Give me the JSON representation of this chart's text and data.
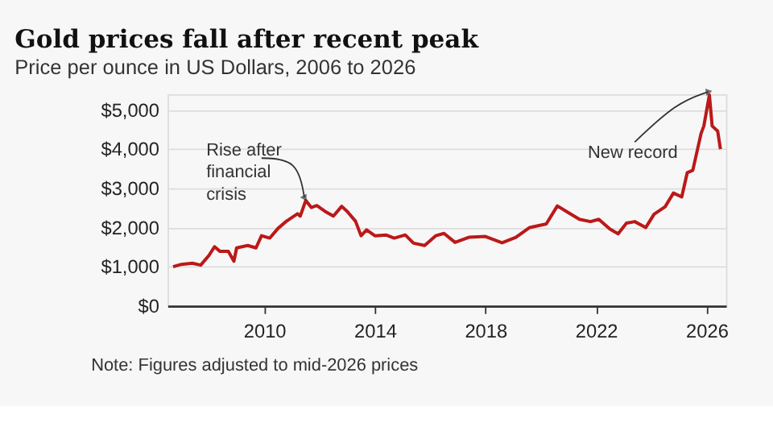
{
  "chart_data": {
    "type": "line",
    "title": "Gold prices fall after recent peak",
    "subtitle": "Price per ounce in US Dollars, 2006 to 2026",
    "x": [
      2006.7,
      2007.0,
      2007.4,
      2007.7,
      2008.0,
      2008.2,
      2008.4,
      2008.7,
      2008.9,
      2009.0,
      2009.4,
      2009.7,
      2009.9,
      2010.2,
      2010.5,
      2010.8,
      2011.2,
      2011.3,
      2011.5,
      2011.7,
      2011.9,
      2012.2,
      2012.5,
      2012.8,
      2013.0,
      2013.3,
      2013.5,
      2013.7,
      2014.0,
      2014.4,
      2014.7,
      2015.1,
      2015.4,
      2015.8,
      2016.2,
      2016.5,
      2016.9,
      2017.4,
      2018.0,
      2018.6,
      2019.1,
      2019.6,
      2020.2,
      2020.6,
      2021.0,
      2021.4,
      2021.8,
      2022.1,
      2022.5,
      2022.8,
      2023.1,
      2023.4,
      2023.8,
      2024.1,
      2024.5,
      2024.8,
      2025.1,
      2025.3,
      2025.5,
      2025.8,
      2025.9,
      2026.1,
      2026.2,
      2026.4,
      2026.5
    ],
    "series": [
      {
        "color": "#bb1919",
        "values": [
          1000,
          1060,
          1090,
          1040,
          1290,
          1510,
          1390,
          1390,
          1140,
          1480,
          1540,
          1480,
          1790,
          1730,
          1980,
          2160,
          2350,
          2290,
          2690,
          2510,
          2560,
          2410,
          2290,
          2540,
          2410,
          2160,
          1790,
          1940,
          1790,
          1810,
          1730,
          1810,
          1600,
          1540,
          1790,
          1850,
          1620,
          1750,
          1770,
          1610,
          1750,
          2000,
          2090,
          2550,
          2380,
          2210,
          2150,
          2210,
          1960,
          1840,
          2110,
          2150,
          2000,
          2340,
          2530,
          2880,
          2780,
          3400,
          3460,
          4400,
          4590,
          5380,
          4590,
          4460,
          4000
        ]
      }
    ],
    "xlim": [
      2006.5,
      2026.7
    ],
    "xticks": [
      2010,
      2014,
      2018,
      2022,
      2026
    ],
    "ylim": [
      0,
      5400
    ],
    "yticks": [
      {
        "value": 0,
        "label": "$0"
      },
      {
        "value": 1000,
        "label": "$1,000"
      },
      {
        "value": 2000,
        "label": "$2,000"
      },
      {
        "value": 3000,
        "label": "$3,000"
      },
      {
        "value": 4000,
        "label": "$4,000"
      },
      {
        "value": 5000,
        "label": "$5,000"
      }
    ],
    "grid": "y",
    "marker": "none",
    "line_style": "solid",
    "annotations": [
      {
        "text": "Rise after financial crisis",
        "x": 2011.5,
        "y": 2690
      },
      {
        "text": "New record",
        "x": 2026.1,
        "y": 5380
      },
      "Note: Figures adjusted to mid-2026 prices"
    ]
  }
}
